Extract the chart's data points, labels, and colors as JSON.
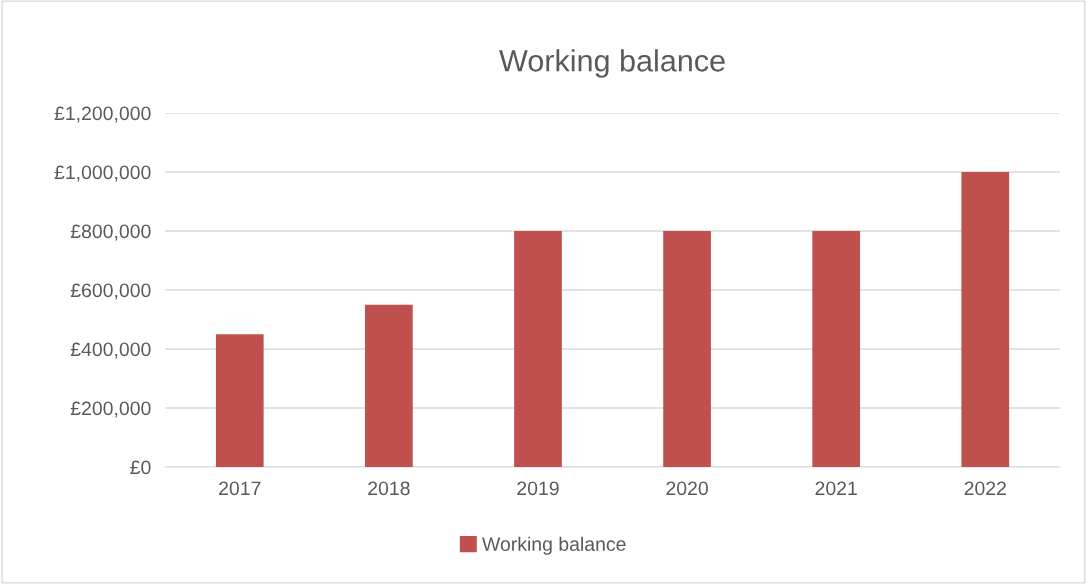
{
  "chart_data": {
    "type": "bar",
    "title": "Working balance",
    "categories": [
      "2017",
      "2018",
      "2019",
      "2020",
      "2021",
      "2022"
    ],
    "series": [
      {
        "name": "Working balance",
        "color": "#c0504d",
        "values": [
          450000,
          550000,
          800000,
          800000,
          800000,
          1000000
        ]
      }
    ],
    "ylim": [
      0,
      1200000
    ],
    "yticks": [
      {
        "value": 0,
        "label": "£0"
      },
      {
        "value": 200000,
        "label": "£200,000"
      },
      {
        "value": 400000,
        "label": "£400,000"
      },
      {
        "value": 600000,
        "label": "£600,000"
      },
      {
        "value": 800000,
        "label": "£800,000"
      },
      {
        "value": 1000000,
        "label": "£1,000,000"
      },
      {
        "value": 1200000,
        "label": "£1,200,000"
      }
    ],
    "grid": "y",
    "legend": "bottom"
  }
}
